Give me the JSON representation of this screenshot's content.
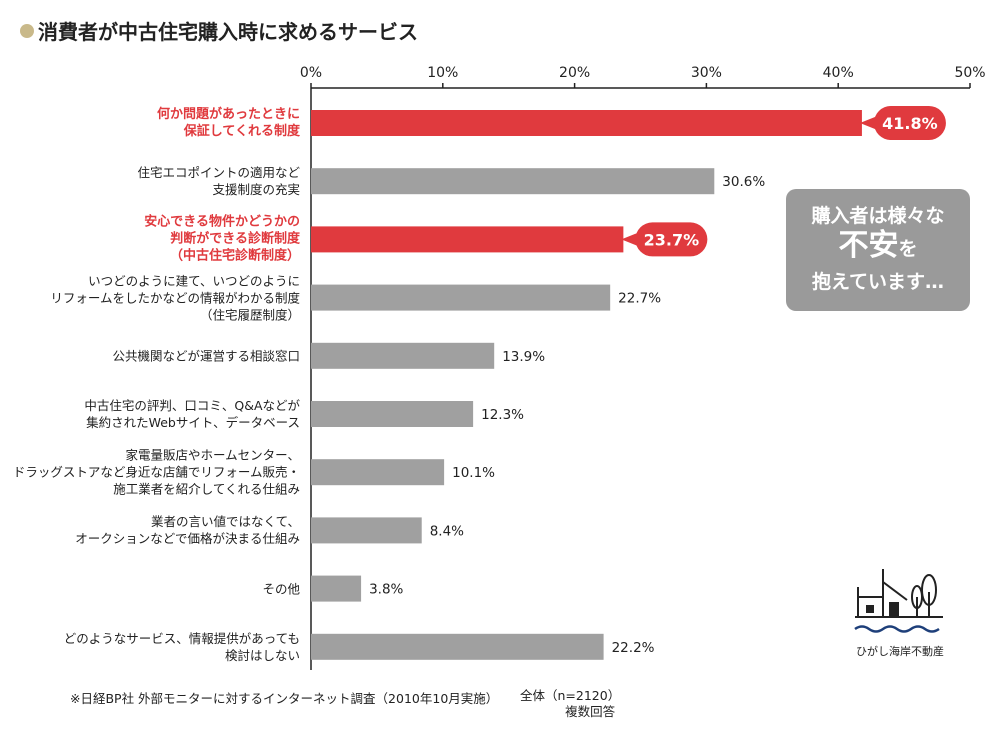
{
  "chart_data": {
    "type": "bar",
    "orientation": "horizontal",
    "title": "消費者が中古住宅購入時に求めるサービス",
    "categories": [
      "何か問題があったときに\n保証してくれる制度",
      "住宅エコポイントの適用など\n支援制度の充実",
      "安心できる物件かどうかの\n判断ができる診断制度\n（中古住宅診断制度）",
      "いつどのように建て、いつどのように\nリフォームをしたかなどの情報がわかる制度\n（住宅履歴制度）",
      "公共機関などが運営する相談窓口",
      "中古住宅の評判、口コミ、Q&Aなどが\n集約されたWebサイト、データベース",
      "家電量販店やホームセンター、\nドラッグストアなど身近な店舗でリフォーム販売・\n施工業者を紹介してくれる仕組み",
      "業者の言い値ではなくて、\nオークションなどで価格が決まる仕組み",
      "その他",
      "どのようなサービス、情報提供があっても\n検討はしない"
    ],
    "values": [
      41.8,
      30.6,
      23.7,
      22.7,
      13.9,
      12.3,
      10.1,
      8.4,
      3.8,
      22.2
    ],
    "data_labels": [
      "41.8%",
      "30.6%",
      "23.7%",
      "22.7%",
      "13.9%",
      "12.3%",
      "10.1%",
      "8.4%",
      "3.8%",
      "22.2%"
    ],
    "highlighted": [
      true,
      false,
      true,
      false,
      false,
      false,
      false,
      false,
      false,
      false
    ],
    "xlim": [
      0,
      50
    ],
    "x_ticks": [
      "0%",
      "10%",
      "20%",
      "30%",
      "40%",
      "50%"
    ],
    "x_tick_values": [
      0,
      10,
      20,
      30,
      40,
      50
    ],
    "x_axis_position": "top",
    "grid": false,
    "colors": {
      "highlight": "#e03a3e",
      "default": "#a0a0a0"
    }
  },
  "callout": {
    "line1": "購入者は様々な",
    "line2": "不安",
    "line2_suffix": "を",
    "line3": "抱えています…"
  },
  "footer": {
    "source": "※日経BP社 外部モニターに対するインターネット調査（2010年10月実施）",
    "sample": "全体（n=2120）",
    "note": "複数回答"
  },
  "logo": {
    "name": "ひがし海岸不動産",
    "icon": "house-tree-wave-logo"
  }
}
